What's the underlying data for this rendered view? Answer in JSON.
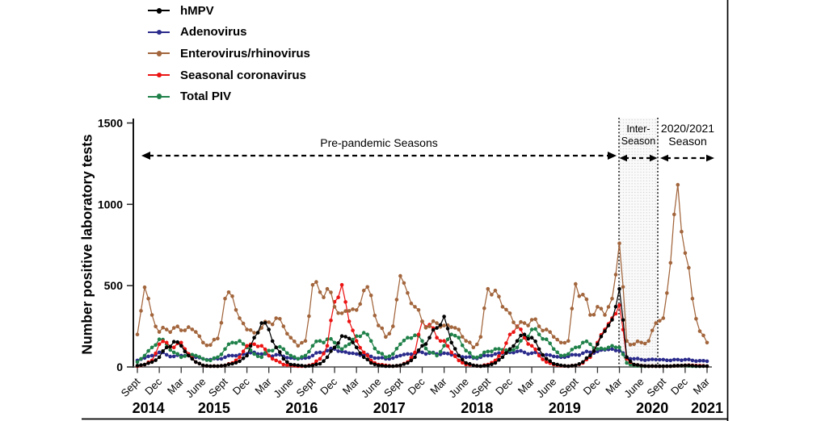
{
  "figure": {
    "annotations": {
      "pre_pandemic": "Pre-pandemic Seasons",
      "inter_season_line1": "Inter-",
      "inter_season_line2": "Season",
      "season_2021_line1": "2020/2021",
      "season_2021_line2": "Season"
    }
  },
  "chart_data": {
    "type": "line",
    "title": "",
    "xlabel": "",
    "ylabel": "Number positive laboratory tests",
    "ylim": [
      0,
      1500
    ],
    "yticks": [
      0,
      500,
      1000,
      1500
    ],
    "grid": false,
    "legend_position": "top-left",
    "x_start": "Sept 2014",
    "x_end": "Mar 2021",
    "x_resolution": "monthly (read from weekly curves)",
    "x_tick_step_months": 3,
    "x_tick_labels": [
      "Sept",
      "Dec",
      "Mar",
      "June",
      "Sept",
      "Dec",
      "Mar",
      "June",
      "Sept",
      "Dec",
      "Mar",
      "June",
      "Sept",
      "Dec",
      "Mar",
      "June",
      "Sept",
      "Dec",
      "Mar",
      "June",
      "Sept",
      "Dec",
      "Mar",
      "June",
      "Sept",
      "Dec",
      "Mar"
    ],
    "years": [
      "2014",
      "2015",
      "2016",
      "2017",
      "2018",
      "2019",
      "2020",
      "2021"
    ],
    "series": [
      {
        "name": "hMPV",
        "color": "#000000",
        "values": [
          8,
          15,
          30,
          60,
          120,
          155,
          130,
          70,
          30,
          10,
          5,
          5,
          10,
          20,
          35,
          70,
          180,
          270,
          230,
          120,
          50,
          15,
          10,
          5,
          10,
          20,
          60,
          120,
          190,
          175,
          120,
          60,
          25,
          10,
          5,
          5,
          10,
          25,
          60,
          130,
          180,
          240,
          310,
          150,
          70,
          25,
          10,
          5,
          10,
          25,
          60,
          110,
          160,
          200,
          180,
          110,
          50,
          20,
          10,
          5,
          10,
          30,
          70,
          140,
          220,
          290,
          480,
          60,
          15,
          8,
          5,
          5,
          5,
          5,
          8,
          10,
          8,
          5,
          5
        ]
      },
      {
        "name": "Adenovirus",
        "color": "#2b2b8c",
        "values": [
          40,
          55,
          70,
          90,
          75,
          65,
          70,
          75,
          60,
          50,
          45,
          50,
          60,
          70,
          75,
          80,
          90,
          80,
          70,
          75,
          65,
          55,
          50,
          55,
          70,
          90,
          100,
          110,
          95,
          85,
          80,
          75,
          65,
          55,
          50,
          55,
          70,
          80,
          85,
          90,
          85,
          80,
          85,
          75,
          70,
          60,
          55,
          60,
          70,
          80,
          85,
          90,
          95,
          90,
          85,
          80,
          75,
          65,
          60,
          65,
          75,
          85,
          90,
          95,
          105,
          110,
          100,
          60,
          50,
          45,
          45,
          45,
          45,
          40,
          45,
          45,
          40,
          38,
          35
        ]
      },
      {
        "name": "Enterovirus/rhinovirus",
        "color": "#a2653c",
        "values": [
          200,
          490,
          320,
          215,
          230,
          240,
          225,
          245,
          215,
          150,
          135,
          175,
          420,
          435,
          300,
          230,
          210,
          240,
          275,
          300,
          250,
          180,
          130,
          160,
          505,
          460,
          480,
          370,
          330,
          345,
          350,
          470,
          440,
          255,
          185,
          250,
          560,
          455,
          370,
          280,
          250,
          270,
          255,
          245,
          230,
          160,
          120,
          185,
          480,
          470,
          370,
          330,
          245,
          270,
          290,
          250,
          230,
          185,
          150,
          160,
          510,
          445,
          320,
          370,
          320,
          420,
          760,
          160,
          140,
          150,
          160,
          270,
          300,
          640,
          1120,
          700,
          420,
          220,
          150
        ]
      },
      {
        "name": "Seasonal coronavirus",
        "color": "#ec1313",
        "values": [
          5,
          15,
          40,
          140,
          150,
          120,
          150,
          80,
          30,
          10,
          5,
          5,
          10,
          25,
          60,
          130,
          140,
          130,
          70,
          40,
          15,
          10,
          5,
          5,
          15,
          50,
          130,
          400,
          505,
          280,
          160,
          90,
          40,
          15,
          10,
          5,
          10,
          30,
          90,
          280,
          260,
          180,
          160,
          90,
          40,
          15,
          10,
          5,
          15,
          40,
          90,
          200,
          250,
          180,
          130,
          70,
          30,
          15,
          8,
          5,
          10,
          25,
          60,
          150,
          230,
          300,
          380,
          50,
          15,
          8,
          5,
          5,
          5,
          5,
          8,
          10,
          10,
          8,
          5
        ]
      },
      {
        "name": "Total PIV",
        "color": "#1f8149",
        "values": [
          30,
          70,
          120,
          170,
          140,
          90,
          60,
          80,
          70,
          50,
          40,
          60,
          110,
          150,
          160,
          120,
          80,
          60,
          100,
          120,
          110,
          70,
          50,
          70,
          130,
          160,
          170,
          150,
          110,
          140,
          190,
          210,
          160,
          90,
          60,
          80,
          140,
          180,
          195,
          160,
          90,
          70,
          130,
          200,
          180,
          100,
          60,
          70,
          95,
          110,
          105,
          100,
          120,
          180,
          230,
          200,
          170,
          110,
          70,
          80,
          120,
          150,
          140,
          110,
          110,
          130,
          120,
          25,
          8,
          5,
          5,
          5,
          5,
          5,
          8,
          8,
          5,
          5,
          5
        ]
      }
    ]
  }
}
